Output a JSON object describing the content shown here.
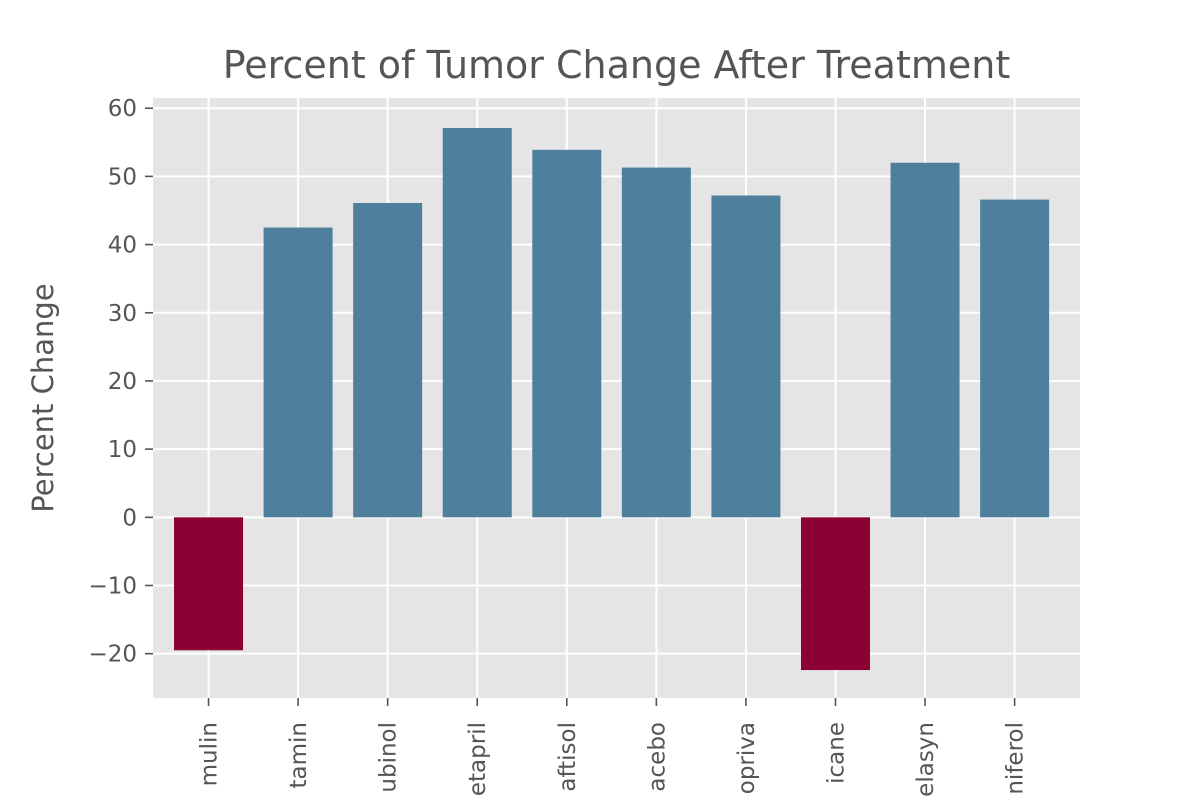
{
  "chart_data": {
    "type": "bar",
    "title": "Percent of Tumor Change After Treatment",
    "xlabel": "",
    "ylabel": "Percent Change",
    "categories": [
      "mulin",
      "tamin",
      "ubinol",
      "etapril",
      "aftisol",
      "acebo",
      "opriva",
      "icane",
      "elasyn",
      "niferol"
    ],
    "values": [
      -19.5,
      42.5,
      46.1,
      57.1,
      53.9,
      51.3,
      47.2,
      -22.4,
      52.0,
      46.6
    ],
    "ylim": [
      -26.5,
      61.5
    ],
    "yticks": [
      -20,
      -10,
      0,
      10,
      20,
      30,
      40,
      50,
      60
    ],
    "ytick_labels": [
      "−20",
      "−10",
      "0",
      "10",
      "20",
      "30",
      "40",
      "50",
      "60"
    ],
    "grid": true,
    "colors": {
      "positive": "#4e809e",
      "negative": "#8b0035",
      "plot_background": "#e5e5e5",
      "grid": "#ffffff",
      "text": "#555555"
    }
  }
}
